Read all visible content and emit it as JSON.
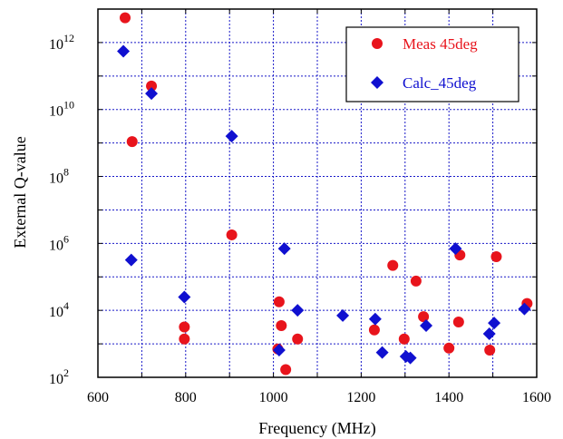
{
  "chart_data": {
    "type": "scatter",
    "xlabel": "Frequency (MHz)",
    "ylabel": "External Q-value",
    "xlim": [
      600,
      1600
    ],
    "ylim": [
      100,
      10000000000000
    ],
    "y_scale": "log",
    "x_ticks": [
      "600",
      "800",
      "1000",
      "1200",
      "1400",
      "1600"
    ],
    "y_ticks": [
      {
        "base": "10",
        "exp": "2",
        "value": 100
      },
      {
        "base": "10",
        "exp": "4",
        "value": 10000
      },
      {
        "base": "10",
        "exp": "6",
        "value": 1000000
      },
      {
        "base": "10",
        "exp": "8",
        "value": 100000000
      },
      {
        "base": "10",
        "exp": "10",
        "value": 10000000000
      },
      {
        "base": "10",
        "exp": "12",
        "value": 1000000000000
      }
    ],
    "grid": true,
    "legend_position": "top-right",
    "series": [
      {
        "name": "Meas 45deg",
        "marker": "circle",
        "color": "#e8141c",
        "points": [
          [
            662,
            5500000000000.0
          ],
          [
            722,
            50000000000.0
          ],
          [
            678,
            1100000000.0
          ],
          [
            905,
            1800000.0
          ],
          [
            797,
            3200.0
          ],
          [
            797,
            1400.0
          ],
          [
            1013,
            18000.0
          ],
          [
            1018,
            3500.0
          ],
          [
            1010,
            700
          ],
          [
            1028,
            170
          ],
          [
            1055,
            1400.0
          ],
          [
            1272,
            220000.0
          ],
          [
            1230,
            2600.0
          ],
          [
            1298,
            1400.0
          ],
          [
            1325,
            75000.0
          ],
          [
            1342,
            6500.0
          ],
          [
            1400,
            750
          ],
          [
            1425,
            450000.0
          ],
          [
            1422,
            4500.0
          ],
          [
            1493,
            650
          ],
          [
            1508,
            400000.0
          ],
          [
            1578,
            16000.0
          ]
        ]
      },
      {
        "name": "Calc_45deg",
        "marker": "diamond",
        "color": "#1010d0",
        "points": [
          [
            658,
            550000000000.0
          ],
          [
            722,
            30000000000.0
          ],
          [
            676,
            320000.0
          ],
          [
            905,
            1600000000.0
          ],
          [
            797,
            25000.0
          ],
          [
            1025,
            700000.0
          ],
          [
            1055,
            10000.0
          ],
          [
            1013,
            650
          ],
          [
            1158,
            7000.0
          ],
          [
            1232,
            5500.0
          ],
          [
            1248,
            550
          ],
          [
            1302,
            420
          ],
          [
            1312,
            380
          ],
          [
            1348,
            3500.0
          ],
          [
            1415,
            700000.0
          ],
          [
            1492,
            2000.0
          ],
          [
            1503,
            4200.0
          ],
          [
            1572,
            11000.0
          ]
        ]
      }
    ]
  }
}
